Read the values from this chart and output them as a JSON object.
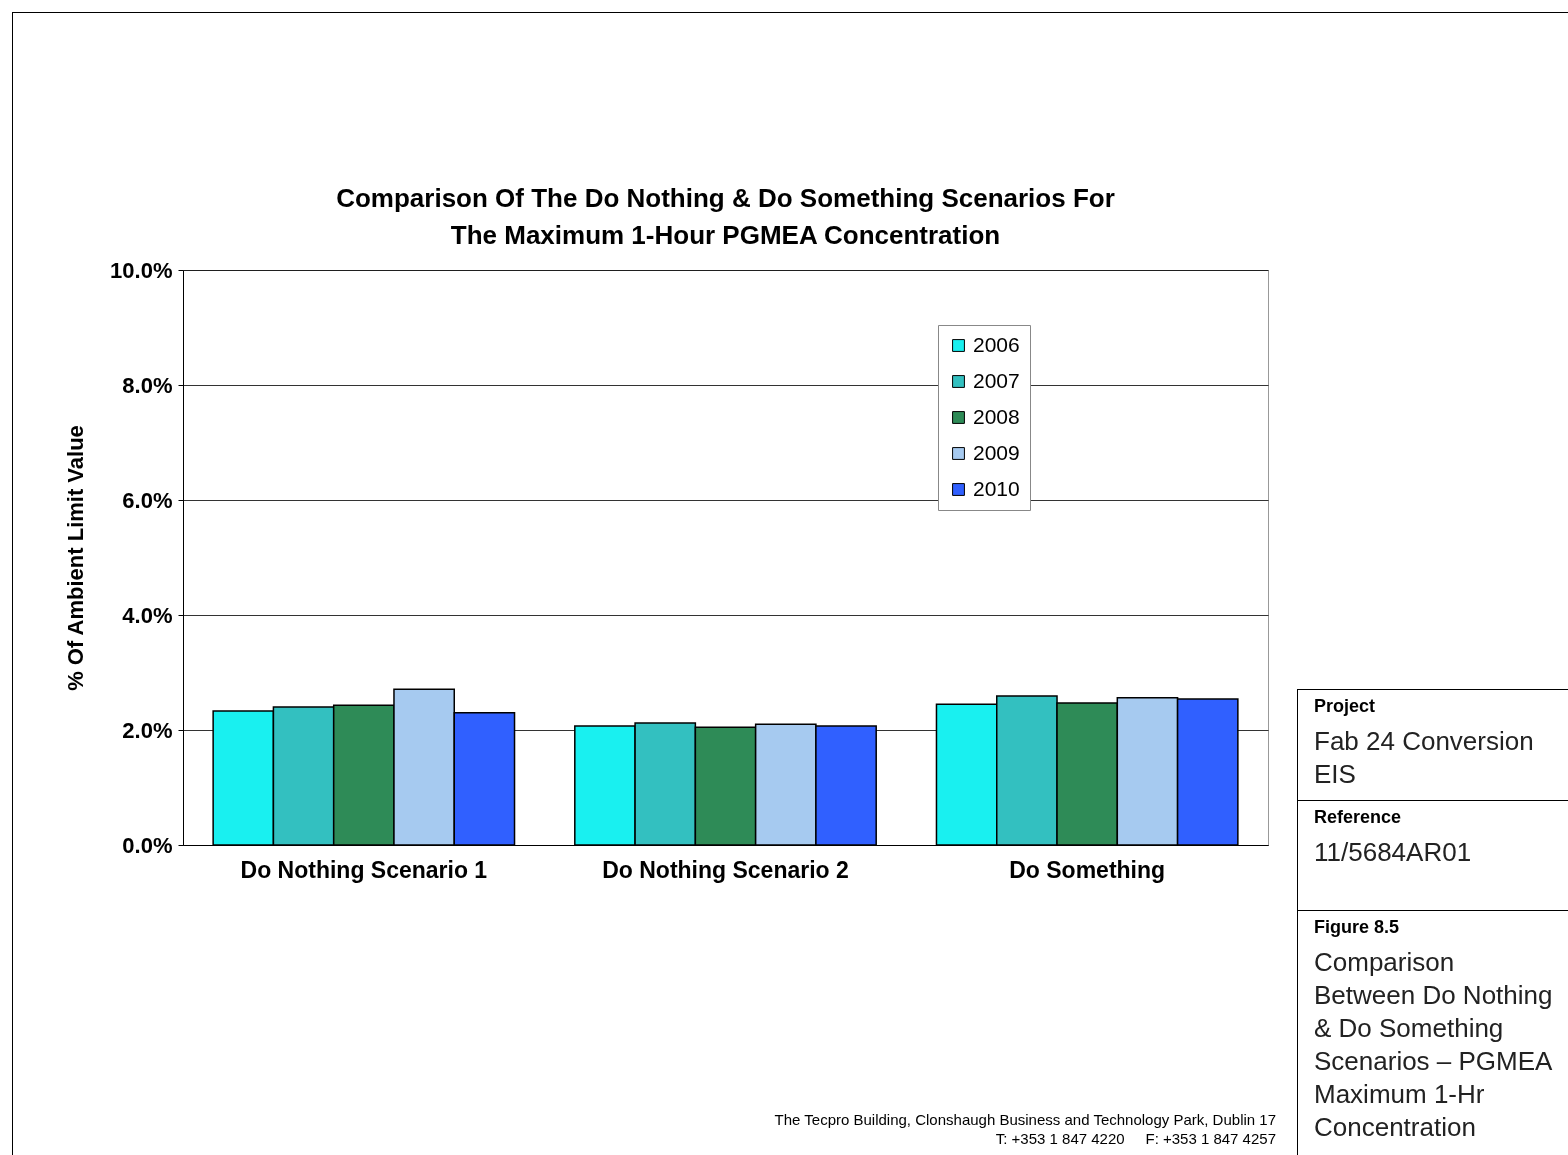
{
  "chart_data": {
    "type": "bar",
    "title": "Comparison Of The Do Nothing & Do Something Scenarios For The Maximum 1-Hour PGMEA Concentration",
    "ylabel": "% Of Ambient Limit Value",
    "categories": [
      "Do Nothing Scenario 1",
      "Do Nothing Scenario 2",
      "Do Something"
    ],
    "series": [
      {
        "name": "2006",
        "color": "#19f0f0",
        "values": [
          2.33,
          2.07,
          2.45
        ]
      },
      {
        "name": "2007",
        "color": "#33c0c0",
        "values": [
          2.4,
          2.12,
          2.59
        ]
      },
      {
        "name": "2008",
        "color": "#2e8b57",
        "values": [
          2.43,
          2.05,
          2.47
        ]
      },
      {
        "name": "2009",
        "color": "#a6caf0",
        "values": [
          2.71,
          2.1,
          2.56
        ]
      },
      {
        "name": "2010",
        "color": "#3060ff",
        "values": [
          2.3,
          2.07,
          2.54
        ]
      }
    ],
    "ylim": [
      0,
      10
    ],
    "yticks": [
      {
        "value": 0,
        "label": "0.0%"
      },
      {
        "value": 2,
        "label": "2.0%"
      },
      {
        "value": 4,
        "label": "4.0%"
      },
      {
        "value": 6,
        "label": "6.0%"
      },
      {
        "value": 8,
        "label": "8.0%"
      },
      {
        "value": 10,
        "label": "10.0%"
      }
    ],
    "grid": "y",
    "legend": "top right",
    "annotations": [
      "Project",
      "Fab 24 Conversion EIS",
      "Reference",
      "11/5684AR01",
      "Figure 8.5",
      "Comparison Between Do Nothing & Do Something Scenarios – PGMEA Maximum 1-Hr Concentration",
      "The Tecpro Building, Clonshaugh Business and Technology Park, Dublin 17",
      "T: +353 1 847 4220     F: +353 1 847 4257"
    ]
  }
}
